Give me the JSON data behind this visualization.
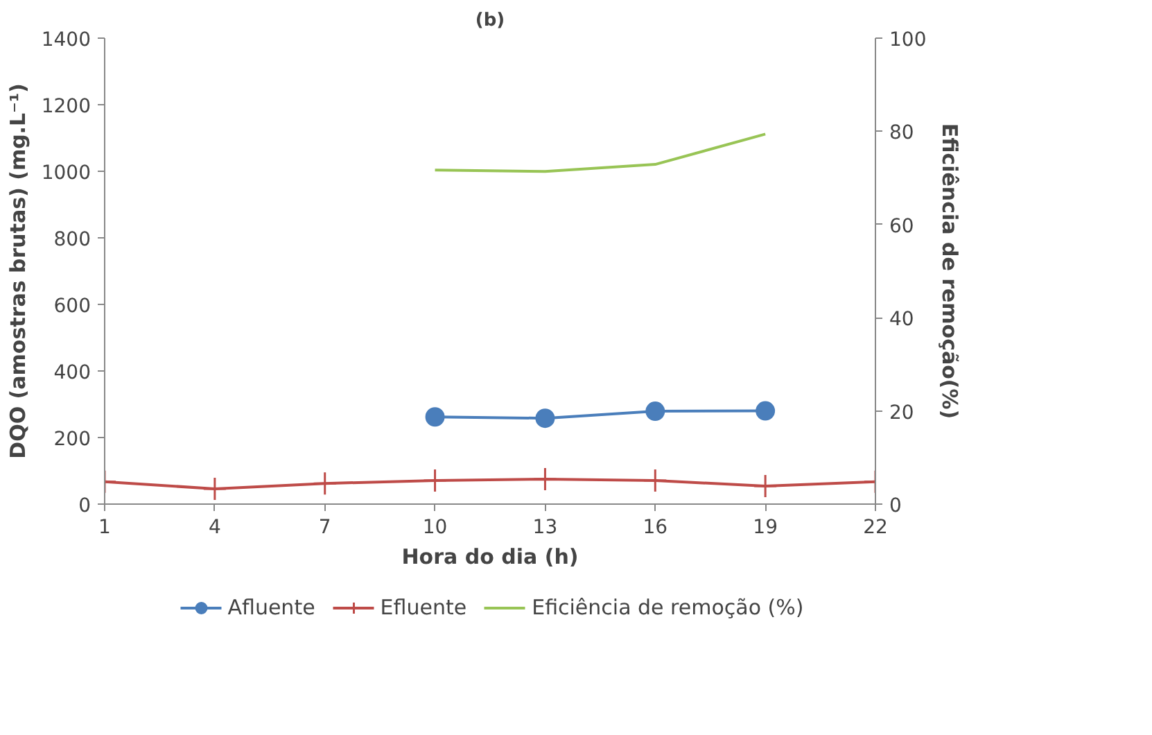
{
  "chart_data": {
    "type": "line",
    "title": "(b)",
    "xlabel": "Hora do dia (h)",
    "ylabel": "DQO (amostras brutas) (mg.L⁻¹)",
    "y2label": "Eficiência de remoção(%)",
    "xlim": [
      1,
      22
    ],
    "xticks": [
      1,
      4,
      7,
      10,
      13,
      16,
      19,
      22
    ],
    "ylim": [
      0,
      1400
    ],
    "yticks": [
      0,
      200,
      400,
      600,
      800,
      1000,
      1200,
      1400
    ],
    "y2lim": [
      0,
      100
    ],
    "y2ticks": [
      0,
      20,
      40,
      60,
      80,
      100
    ],
    "grid": false,
    "legend": "bottom",
    "series": [
      {
        "name": "Afluente",
        "color": "#4a7ebb",
        "marker": "circle",
        "x": [
          10,
          13,
          16,
          19
        ],
        "values": [
          262,
          258,
          279,
          280
        ]
      },
      {
        "name": "Efluente",
        "color": "#be4b48",
        "marker": "cross",
        "x": [
          1,
          4,
          7,
          10,
          13,
          16,
          19,
          22
        ],
        "values": [
          67,
          46,
          62,
          71,
          75,
          71,
          54,
          67
        ]
      },
      {
        "name": "Eficiência de remoção (%)",
        "color": "#98c455",
        "marker": "none",
        "axis": "y2",
        "x": [
          10,
          13,
          16,
          19
        ],
        "values": [
          71.7,
          71.4,
          72.9,
          79.4
        ]
      }
    ]
  }
}
